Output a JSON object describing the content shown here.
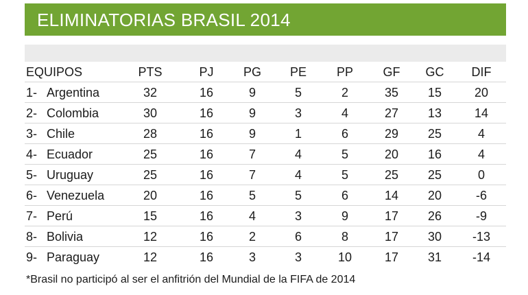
{
  "header": {
    "title": "ELIMINATORIAS BRASIL 2014"
  },
  "columns": {
    "team": "EQUIPOS",
    "pts": "PTS",
    "pj": "PJ",
    "pg": "PG",
    "pe": "PE",
    "pp": "PP",
    "gf": "GF",
    "gc": "GC",
    "dif": "DIF"
  },
  "rows": [
    {
      "pos": "1-",
      "team": "Argentina",
      "pts": "32",
      "pj": "16",
      "pg": "9",
      "pe": "5",
      "pp": "2",
      "gf": "35",
      "gc": "15",
      "dif": "20"
    },
    {
      "pos": "2-",
      "team": "Colombia",
      "pts": "30",
      "pj": "16",
      "pg": "9",
      "pe": "3",
      "pp": "4",
      "gf": "27",
      "gc": "13",
      "dif": "14"
    },
    {
      "pos": "3-",
      "team": "Chile",
      "pts": "28",
      "pj": "16",
      "pg": "9",
      "pe": "1",
      "pp": "6",
      "gf": "29",
      "gc": "25",
      "dif": "4"
    },
    {
      "pos": "4-",
      "team": "Ecuador",
      "pts": "25",
      "pj": "16",
      "pg": "7",
      "pe": "4",
      "pp": "5",
      "gf": "20",
      "gc": "16",
      "dif": "4"
    },
    {
      "pos": "5-",
      "team": "Uruguay",
      "pts": "25",
      "pj": "16",
      "pg": "7",
      "pe": "4",
      "pp": "5",
      "gf": "25",
      "gc": "25",
      "dif": "0"
    },
    {
      "pos": "6-",
      "team": "Venezuela",
      "pts": "20",
      "pj": "16",
      "pg": "5",
      "pe": "5",
      "pp": "6",
      "gf": "14",
      "gc": "20",
      "dif": "-6"
    },
    {
      "pos": "7-",
      "team": "Perú",
      "pts": "15",
      "pj": "16",
      "pg": "4",
      "pe": "3",
      "pp": "9",
      "gf": "17",
      "gc": "26",
      "dif": "-9"
    },
    {
      "pos": "8-",
      "team": "Bolivia",
      "pts": "12",
      "pj": "16",
      "pg": "2",
      "pe": "6",
      "pp": "8",
      "gf": "17",
      "gc": "30",
      "dif": "-13"
    },
    {
      "pos": "9-",
      "team": "Paraguay",
      "pts": "12",
      "pj": "16",
      "pg": "3",
      "pe": "3",
      "pp": "10",
      "gf": "17",
      "gc": "31",
      "dif": "-14"
    }
  ],
  "footnote": "*Brasil no participó al ser el anfitrión del Mundial de la FIFA de 2014",
  "colors": {
    "header_bg": "#72a533",
    "header_text": "#ffffff",
    "band_bg": "#ebebeb",
    "row_divider": "#d6d6d6"
  }
}
